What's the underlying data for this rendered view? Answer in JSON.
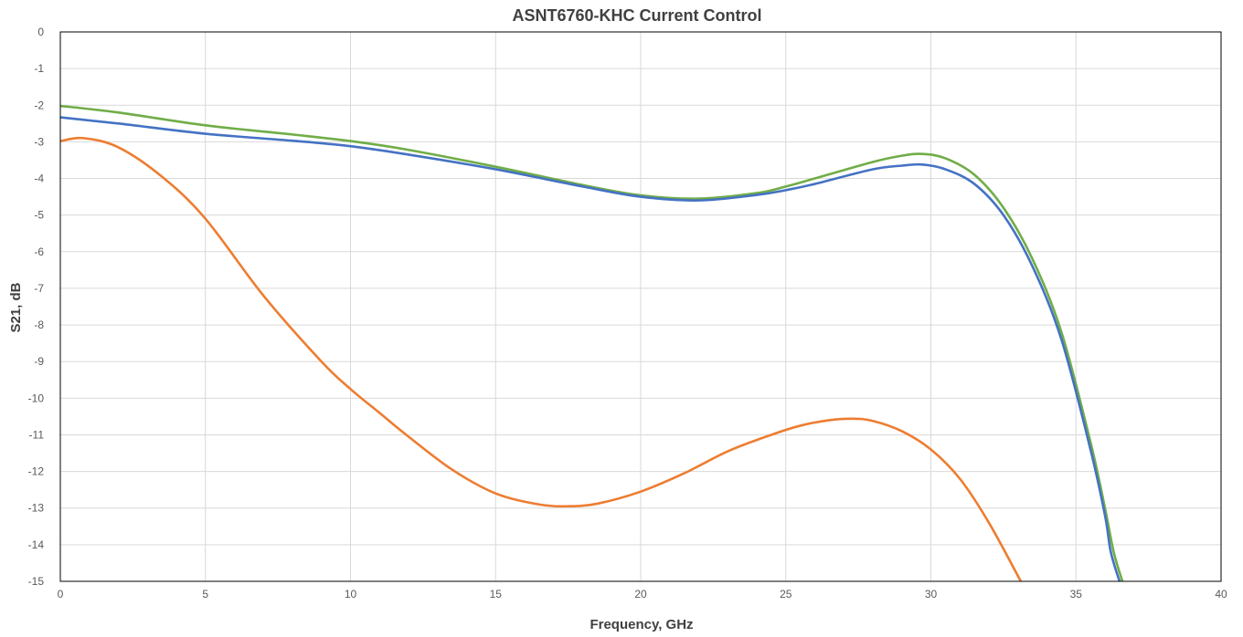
{
  "chart_data": {
    "type": "line",
    "title": "ASNT6760-KHC Current Control",
    "xlabel": "Frequency, GHz",
    "ylabel": "S21, dB",
    "xlim": [
      0,
      40
    ],
    "ylim": [
      -15,
      0
    ],
    "xticks": [
      "0",
      "5",
      "10",
      "15",
      "20",
      "25",
      "30",
      "35",
      "40"
    ],
    "yticks": [
      "0",
      "-1",
      "-2",
      "-3",
      "-4",
      "-5",
      "-6",
      "-7",
      "-8",
      "-9",
      "-10",
      "-11",
      "-12",
      "-13",
      "-14",
      "-15"
    ],
    "grid": true,
    "legend": false,
    "series": [
      {
        "color": "#70ad47",
        "x": [
          0,
          2,
          5,
          8,
          10,
          12,
          15,
          18,
          20,
          22,
          24,
          25,
          26,
          28,
          29,
          29.7,
          30.5,
          31.5,
          32.5,
          33.5,
          34.5,
          35.5,
          36,
          36.3,
          36.6
        ],
        "y": [
          -2.02,
          -2.2,
          -2.55,
          -2.8,
          -2.98,
          -3.22,
          -3.68,
          -4.18,
          -4.46,
          -4.55,
          -4.4,
          -4.22,
          -4.0,
          -3.55,
          -3.38,
          -3.33,
          -3.45,
          -3.9,
          -4.8,
          -6.2,
          -8.2,
          -11.2,
          -13.0,
          -14.2,
          -15.0
        ]
      },
      {
        "color": "#4472c4",
        "x": [
          0,
          2,
          5,
          8,
          10,
          12,
          15,
          18,
          20,
          22,
          24,
          25,
          26,
          28,
          29,
          29.7,
          30.5,
          31.5,
          32.5,
          33.5,
          34.5,
          35.5,
          36,
          36.2,
          36.5
        ],
        "y": [
          -2.33,
          -2.5,
          -2.78,
          -2.97,
          -3.12,
          -3.35,
          -3.75,
          -4.22,
          -4.5,
          -4.6,
          -4.45,
          -4.32,
          -4.15,
          -3.75,
          -3.65,
          -3.62,
          -3.75,
          -4.15,
          -5.0,
          -6.4,
          -8.4,
          -11.4,
          -13.2,
          -14.2,
          -15.0
        ]
      },
      {
        "color": "#ed7d31",
        "x": [
          0,
          0.8,
          2,
          3.5,
          5,
          7,
          9,
          10,
          11,
          12,
          13.5,
          15,
          16.5,
          17.5,
          18.5,
          20,
          21.5,
          23,
          24.5,
          25.5,
          26.5,
          27.3,
          28,
          29,
          30,
          31,
          32,
          33.1
        ],
        "y": [
          -2.98,
          -2.9,
          -3.15,
          -3.95,
          -5.1,
          -7.2,
          -9.0,
          -9.75,
          -10.4,
          -11.05,
          -11.95,
          -12.6,
          -12.9,
          -12.95,
          -12.88,
          -12.55,
          -12.05,
          -11.45,
          -11.0,
          -10.75,
          -10.6,
          -10.56,
          -10.62,
          -10.9,
          -11.4,
          -12.2,
          -13.4,
          -15.0
        ]
      }
    ]
  }
}
